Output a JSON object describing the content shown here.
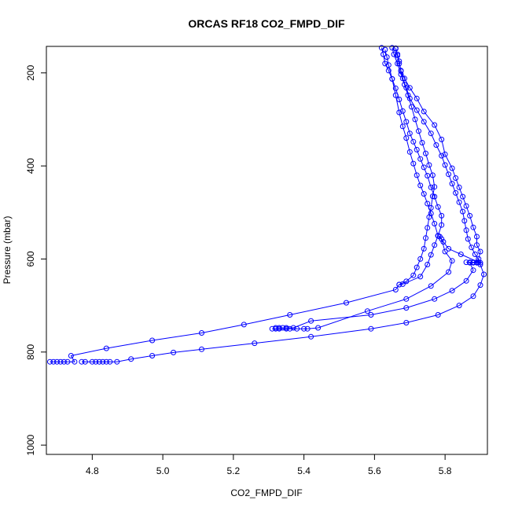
{
  "chart_data": {
    "type": "line",
    "title": "ORCAS RF18 CO2_FMPD_DIF",
    "xlabel": "CO2_FMPD_DIF",
    "ylabel": "Pressure (mbar)",
    "xlim": [
      4.67,
      5.92
    ],
    "ylim": [
      1020,
      143
    ],
    "y_reversed": true,
    "x_ticks": [
      4.8,
      5.0,
      5.2,
      5.4,
      5.6,
      5.8
    ],
    "y_ticks": [
      200,
      400,
      600,
      800,
      1000
    ],
    "grid": false,
    "legend": "none",
    "color": "#0000ff",
    "series": [
      {
        "points": [
          [
            4.68,
            821
          ],
          [
            4.69,
            821
          ],
          [
            4.7,
            821
          ],
          [
            4.71,
            821
          ],
          [
            4.72,
            821
          ],
          [
            4.73,
            821
          ],
          [
            4.75,
            821
          ],
          [
            4.74,
            808
          ],
          [
            4.84,
            792
          ],
          [
            4.97,
            775
          ],
          [
            5.11,
            759
          ],
          [
            5.23,
            741
          ],
          [
            5.36,
            720
          ],
          [
            5.52,
            694
          ],
          [
            5.66,
            666
          ],
          [
            5.67,
            655
          ],
          [
            5.68,
            654
          ],
          [
            5.73,
            638
          ],
          [
            5.75,
            612
          ],
          [
            5.76,
            591
          ],
          [
            5.77,
            570
          ],
          [
            5.78,
            550
          ],
          [
            5.79,
            527
          ],
          [
            5.79,
            507
          ],
          [
            5.78,
            488
          ],
          [
            5.77,
            466
          ],
          [
            5.76,
            446
          ],
          [
            5.75,
            421
          ],
          [
            5.74,
            403
          ],
          [
            5.73,
            385
          ],
          [
            5.72,
            365
          ],
          [
            5.71,
            348
          ],
          [
            5.7,
            330
          ],
          [
            5.69,
            305
          ],
          [
            5.68,
            282
          ],
          [
            5.67,
            257
          ],
          [
            5.66,
            233
          ],
          [
            5.65,
            213
          ],
          [
            5.64,
            195
          ],
          [
            5.63,
            180
          ],
          [
            5.625,
            160
          ],
          [
            5.62,
            146
          ]
        ]
      },
      {
        "points": [
          [
            4.77,
            821
          ],
          [
            4.78,
            821
          ],
          [
            4.8,
            821
          ],
          [
            4.81,
            821
          ],
          [
            4.82,
            821
          ],
          [
            4.83,
            821
          ],
          [
            4.84,
            821
          ],
          [
            4.85,
            821
          ],
          [
            4.87,
            821
          ],
          [
            4.91,
            815
          ],
          [
            4.97,
            808
          ],
          [
            5.03,
            801
          ],
          [
            5.11,
            794
          ],
          [
            5.26,
            781
          ],
          [
            5.42,
            767
          ],
          [
            5.59,
            750
          ],
          [
            5.69,
            737
          ],
          [
            5.78,
            720
          ],
          [
            5.84,
            700
          ],
          [
            5.88,
            680
          ],
          [
            5.9,
            656
          ],
          [
            5.91,
            633
          ],
          [
            5.9,
            612
          ],
          [
            5.895,
            600
          ],
          [
            5.9,
            584
          ],
          [
            5.89,
            570
          ],
          [
            5.89,
            552
          ],
          [
            5.88,
            532
          ],
          [
            5.87,
            507
          ],
          [
            5.86,
            486
          ],
          [
            5.85,
            466
          ],
          [
            5.84,
            446
          ],
          [
            5.83,
            426
          ],
          [
            5.82,
            405
          ],
          [
            5.8,
            375
          ],
          [
            5.79,
            343
          ],
          [
            5.77,
            312
          ],
          [
            5.74,
            283
          ],
          [
            5.72,
            255
          ],
          [
            5.7,
            232
          ],
          [
            5.685,
            212
          ],
          [
            5.675,
            196
          ],
          [
            5.67,
            180
          ],
          [
            5.665,
            163
          ],
          [
            5.66,
            148
          ]
        ]
      },
      {
        "points": [
          [
            5.31,
            750
          ],
          [
            5.32,
            750
          ],
          [
            5.33,
            750
          ],
          [
            5.35,
            750
          ],
          [
            5.36,
            750
          ],
          [
            5.38,
            750
          ],
          [
            5.4,
            750
          ],
          [
            5.41,
            750
          ],
          [
            5.44,
            748
          ],
          [
            5.58,
            712
          ],
          [
            5.69,
            686
          ],
          [
            5.76,
            658
          ],
          [
            5.81,
            628
          ],
          [
            5.82,
            604
          ],
          [
            5.8,
            584
          ],
          [
            5.79,
            557
          ],
          [
            5.78,
            550
          ],
          [
            5.77,
            524
          ],
          [
            5.76,
            502
          ],
          [
            5.75,
            481
          ],
          [
            5.74,
            460
          ],
          [
            5.73,
            442
          ],
          [
            5.72,
            420
          ],
          [
            5.71,
            395
          ],
          [
            5.7,
            370
          ],
          [
            5.69,
            340
          ],
          [
            5.68,
            315
          ],
          [
            5.67,
            285
          ],
          [
            5.66,
            248
          ],
          [
            5.65,
            213
          ],
          [
            5.64,
            183
          ],
          [
            5.635,
            166
          ],
          [
            5.63,
            150
          ]
        ]
      },
      {
        "points": [
          [
            5.32,
            748
          ],
          [
            5.33,
            748
          ],
          [
            5.34,
            748
          ],
          [
            5.35,
            748
          ],
          [
            5.37,
            748
          ],
          [
            5.42,
            733
          ],
          [
            5.59,
            720
          ],
          [
            5.69,
            705
          ],
          [
            5.77,
            686
          ],
          [
            5.82,
            668
          ],
          [
            5.86,
            647
          ],
          [
            5.88,
            624
          ],
          [
            5.87,
            608
          ],
          [
            5.88,
            608
          ],
          [
            5.89,
            608
          ],
          [
            5.9,
            608
          ],
          [
            5.885,
            590
          ],
          [
            5.875,
            575
          ],
          [
            5.865,
            557
          ],
          [
            5.86,
            538
          ],
          [
            5.855,
            518
          ],
          [
            5.85,
            498
          ],
          [
            5.84,
            478
          ],
          [
            5.83,
            458
          ],
          [
            5.82,
            438
          ],
          [
            5.81,
            418
          ],
          [
            5.8,
            398
          ],
          [
            5.79,
            378
          ],
          [
            5.775,
            355
          ],
          [
            5.76,
            330
          ],
          [
            5.74,
            305
          ],
          [
            5.72,
            280
          ],
          [
            5.7,
            255
          ],
          [
            5.69,
            232
          ],
          [
            5.68,
            212
          ],
          [
            5.675,
            195
          ],
          [
            5.67,
            175
          ],
          [
            5.665,
            160
          ],
          [
            5.66,
            147
          ]
        ]
      },
      {
        "points": [
          [
            5.67,
            655
          ],
          [
            5.69,
            648
          ],
          [
            5.71,
            635
          ],
          [
            5.72,
            618
          ],
          [
            5.73,
            600
          ],
          [
            5.74,
            578
          ],
          [
            5.745,
            555
          ],
          [
            5.75,
            533
          ],
          [
            5.755,
            510
          ],
          [
            5.76,
            490
          ],
          [
            5.765,
            465
          ],
          [
            5.77,
            445
          ],
          [
            5.765,
            420
          ],
          [
            5.755,
            398
          ],
          [
            5.745,
            373
          ],
          [
            5.735,
            350
          ],
          [
            5.725,
            325
          ],
          [
            5.715,
            300
          ],
          [
            5.705,
            273
          ],
          [
            5.695,
            248
          ],
          [
            5.685,
            225
          ],
          [
            5.675,
            203
          ],
          [
            5.665,
            180
          ],
          [
            5.655,
            160
          ],
          [
            5.65,
            146
          ]
        ]
      },
      {
        "points": [
          [
            5.86,
            607
          ],
          [
            5.87,
            607
          ],
          [
            5.88,
            607
          ],
          [
            5.89,
            607
          ],
          [
            5.895,
            607
          ],
          [
            5.845,
            590
          ],
          [
            5.81,
            578
          ],
          [
            5.795,
            563
          ],
          [
            5.785,
            552
          ],
          [
            5.78,
            550
          ]
        ]
      }
    ]
  }
}
